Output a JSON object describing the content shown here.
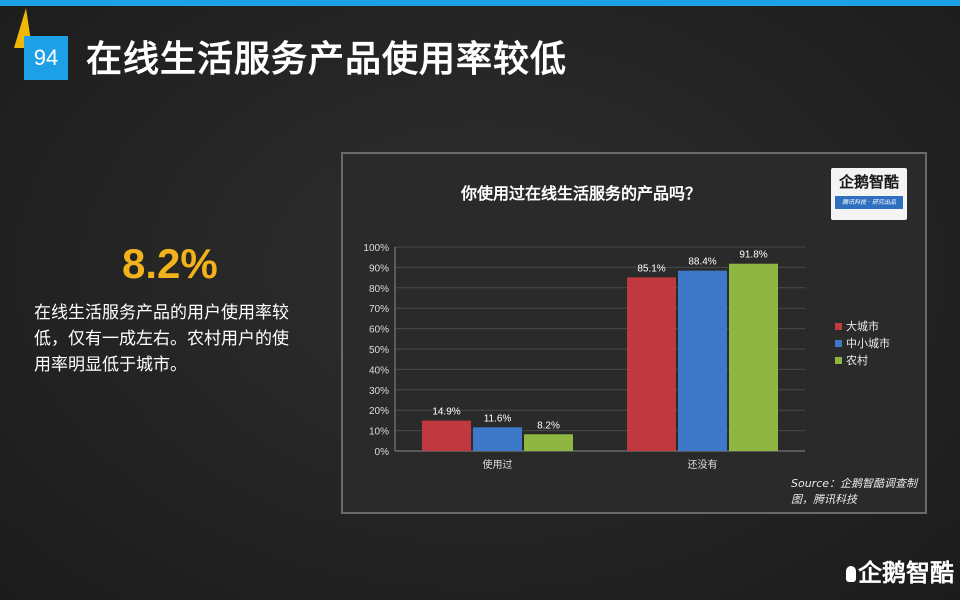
{
  "slide": {
    "page_number": "94",
    "title": "在线生活服务产品使用率较低",
    "highlight_value": "8.2%",
    "description": "在线生活服务产品的用户使用率较低，仅有一成左右。农村用户的使用率明显低于城市。",
    "accent_color": "#1ea0e6",
    "highlight_color": "#f2b21b",
    "footer_logo": "企鹅智酷"
  },
  "logo_badge": {
    "name": "企鹅智酷",
    "tagline": "腾讯科技 · 研究出品"
  },
  "source": "Source：企鹅智酷调查制图，腾讯科技",
  "chart_data": {
    "type": "bar",
    "title": "你使用过在线生活服务的产品吗？",
    "categories": [
      "使用过",
      "还没有"
    ],
    "series": [
      {
        "name": "大城市",
        "values": [
          14.9,
          85.1
        ],
        "labels": [
          "14.9%",
          "85.1%"
        ],
        "color": "#c0393f"
      },
      {
        "name": "中小城市",
        "values": [
          11.6,
          88.4
        ],
        "labels": [
          "11.6%",
          "88.4%"
        ],
        "color": "#3d79c8"
      },
      {
        "name": "农村",
        "values": [
          8.2,
          91.8
        ],
        "labels": [
          "8.2%",
          "91.8%"
        ],
        "color": "#8fb640"
      }
    ],
    "yticks": [
      "0%",
      "10%",
      "20%",
      "30%",
      "40%",
      "50%",
      "60%",
      "70%",
      "80%",
      "90%",
      "100%"
    ],
    "ylim": [
      0,
      100
    ],
    "grid": true,
    "legend_position": "right"
  }
}
